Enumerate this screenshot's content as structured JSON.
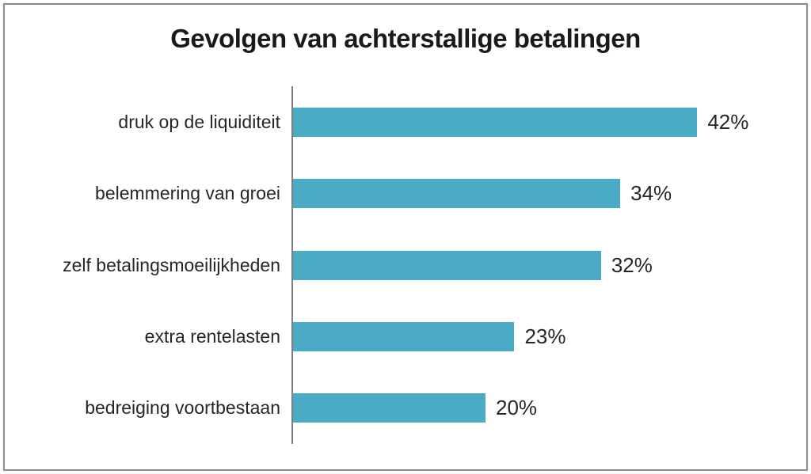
{
  "frame": {
    "border_color": "#8c8c8c",
    "background": "#ffffff"
  },
  "chart_data": {
    "type": "bar",
    "orientation": "horizontal",
    "title": "Gevolgen van achterstallige betalingen",
    "categories": [
      "druk op de liquiditeit",
      "belemmering van groei",
      "zelf betalingsmoeilijkheden",
      "extra rentelasten",
      "bedreiging voortbestaan"
    ],
    "values": [
      42,
      34,
      32,
      23,
      20
    ],
    "value_labels": [
      "42%",
      "34%",
      "32%",
      "23%",
      "20%"
    ],
    "xlabel": "",
    "ylabel": "",
    "xlim": [
      0,
      53
    ],
    "grid": false,
    "legend": false,
    "data_labels_position": "outside-end",
    "bar_color": "#4aabc5",
    "axis_color": "#7f7f7f",
    "title_color": "#1a1a1a",
    "label_color": "#262626"
  }
}
